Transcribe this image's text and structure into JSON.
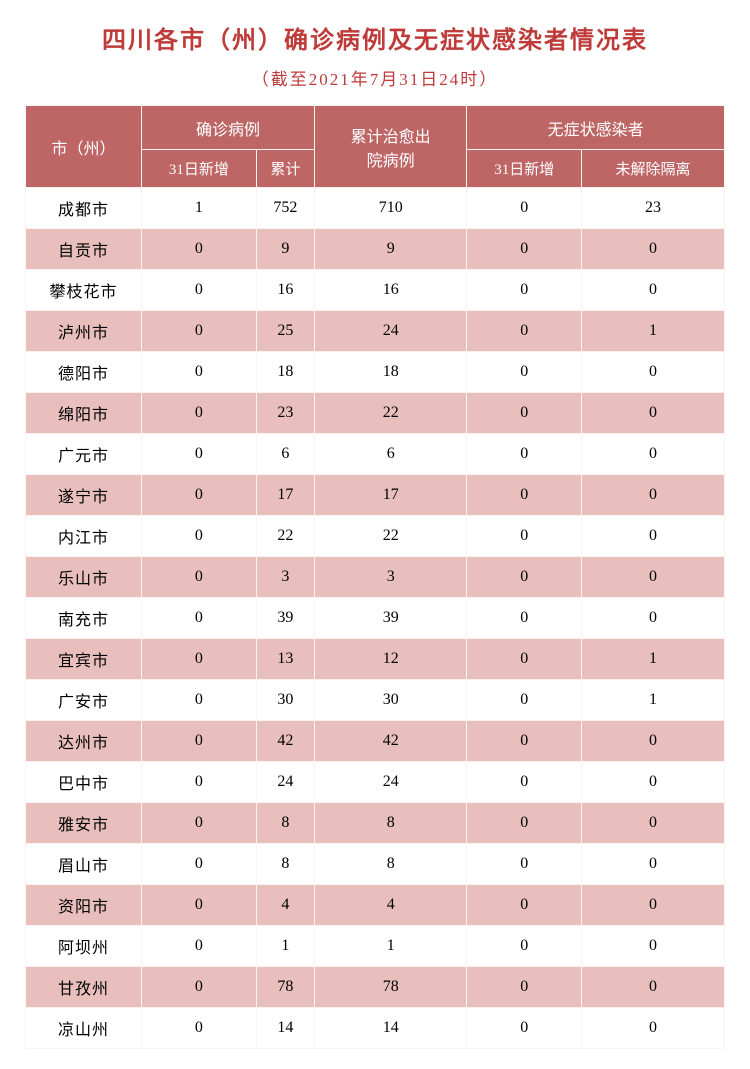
{
  "title": "四川各市（州）确诊病例及无症状感染者情况表",
  "subtitle": "（截至2021年7月31日24时）",
  "style": {
    "title_color": "#be3b39",
    "title_fontsize": 24,
    "subtitle_color": "#be3b39",
    "subtitle_fontsize": 17,
    "header_bg": "#be6666",
    "header_color": "#ffffff",
    "header_fontsize": 16,
    "subheader_fontsize": 15,
    "row_odd_bg": "#ffffff",
    "row_even_bg": "#e8bfbd",
    "cell_fontsize": 16,
    "header_row1_height": 44,
    "header_row2_height": 38,
    "body_row_height": 41,
    "col_widths": [
      "16.6%",
      "16.6%",
      "16.6%",
      "16.6%",
      "16.6%",
      "16.6%"
    ]
  },
  "headers": {
    "city": "市（州）",
    "confirmed": "确诊病例",
    "confirmed_new": "31日新增",
    "confirmed_total": "累计",
    "recovered": "累计治愈出院病例",
    "asymptomatic": "无症状感染者",
    "asymptomatic_new": "31日新增",
    "asymptomatic_iso": "未解除隔离"
  },
  "rows": [
    {
      "city": "成都市",
      "new": "1",
      "total": "752",
      "recovered": "710",
      "asym_new": "0",
      "asym_iso": "23"
    },
    {
      "city": "自贡市",
      "new": "0",
      "total": "9",
      "recovered": "9",
      "asym_new": "0",
      "asym_iso": "0"
    },
    {
      "city": "攀枝花市",
      "new": "0",
      "total": "16",
      "recovered": "16",
      "asym_new": "0",
      "asym_iso": "0"
    },
    {
      "city": "泸州市",
      "new": "0",
      "total": "25",
      "recovered": "24",
      "asym_new": "0",
      "asym_iso": "1"
    },
    {
      "city": "德阳市",
      "new": "0",
      "total": "18",
      "recovered": "18",
      "asym_new": "0",
      "asym_iso": "0"
    },
    {
      "city": "绵阳市",
      "new": "0",
      "total": "23",
      "recovered": "22",
      "asym_new": "0",
      "asym_iso": "0"
    },
    {
      "city": "广元市",
      "new": "0",
      "total": "6",
      "recovered": "6",
      "asym_new": "0",
      "asym_iso": "0"
    },
    {
      "city": "遂宁市",
      "new": "0",
      "total": "17",
      "recovered": "17",
      "asym_new": "0",
      "asym_iso": "0"
    },
    {
      "city": "内江市",
      "new": "0",
      "total": "22",
      "recovered": "22",
      "asym_new": "0",
      "asym_iso": "0"
    },
    {
      "city": "乐山市",
      "new": "0",
      "total": "3",
      "recovered": "3",
      "asym_new": "0",
      "asym_iso": "0"
    },
    {
      "city": "南充市",
      "new": "0",
      "total": "39",
      "recovered": "39",
      "asym_new": "0",
      "asym_iso": "0"
    },
    {
      "city": "宜宾市",
      "new": "0",
      "total": "13",
      "recovered": "12",
      "asym_new": "0",
      "asym_iso": "1"
    },
    {
      "city": "广安市",
      "new": "0",
      "total": "30",
      "recovered": "30",
      "asym_new": "0",
      "asym_iso": "1"
    },
    {
      "city": "达州市",
      "new": "0",
      "total": "42",
      "recovered": "42",
      "asym_new": "0",
      "asym_iso": "0"
    },
    {
      "city": "巴中市",
      "new": "0",
      "total": "24",
      "recovered": "24",
      "asym_new": "0",
      "asym_iso": "0"
    },
    {
      "city": "雅安市",
      "new": "0",
      "total": "8",
      "recovered": "8",
      "asym_new": "0",
      "asym_iso": "0"
    },
    {
      "city": "眉山市",
      "new": "0",
      "total": "8",
      "recovered": "8",
      "asym_new": "0",
      "asym_iso": "0"
    },
    {
      "city": "资阳市",
      "new": "0",
      "total": "4",
      "recovered": "4",
      "asym_new": "0",
      "asym_iso": "0"
    },
    {
      "city": "阿坝州",
      "new": "0",
      "total": "1",
      "recovered": "1",
      "asym_new": "0",
      "asym_iso": "0"
    },
    {
      "city": "甘孜州",
      "new": "0",
      "total": "78",
      "recovered": "78",
      "asym_new": "0",
      "asym_iso": "0"
    },
    {
      "city": "凉山州",
      "new": "0",
      "total": "14",
      "recovered": "14",
      "asym_new": "0",
      "asym_iso": "0"
    }
  ]
}
